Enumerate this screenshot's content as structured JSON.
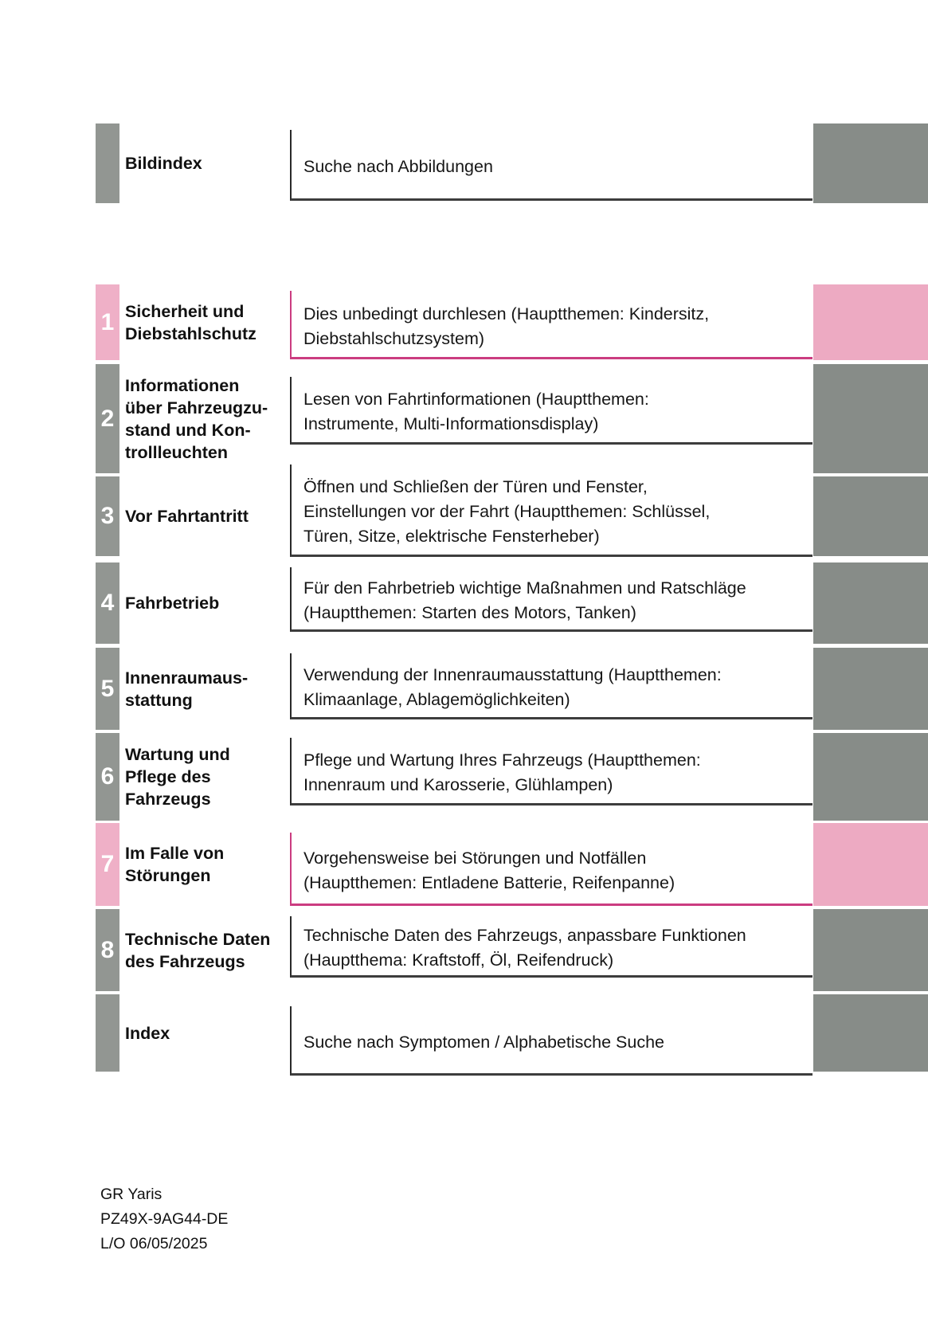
{
  "colors": {
    "gray_block": "#878c88",
    "gray_numbox": "#929692",
    "pink_block": "#edaac2",
    "pink_numbox": "#efb0c7",
    "pink_border": "#cb3c80",
    "dark_border": "#3d3d3d",
    "dark_left_border": "#2a2a2a"
  },
  "rows": [
    {
      "number": "",
      "accent": "gray",
      "label": "Bildindex",
      "description": "Suche nach Abbildungen"
    },
    {
      "number": "1",
      "accent": "pink",
      "label": "Sicherheit und\nDiebstahlschutz",
      "description": "Dies unbedingt durchlesen (Hauptthemen: Kindersitz,\nDiebstahlschutzsystem)"
    },
    {
      "number": "2",
      "accent": "gray",
      "label": "Informationen\nüber Fahrzeugzu-\nstand und Kon-\ntrollleuchten",
      "description": "Lesen von Fahrtinformationen (Hauptthemen:\nInstrumente, Multi-Informationsdisplay)"
    },
    {
      "number": "3",
      "accent": "gray",
      "label": "Vor Fahrtantritt",
      "description": "Öffnen und Schließen der Türen und Fenster,\nEinstellungen vor der Fahrt (Hauptthemen: Schlüssel,\nTüren, Sitze, elektrische Fensterheber)"
    },
    {
      "number": "4",
      "accent": "gray",
      "label": "Fahrbetrieb",
      "description": "Für den Fahrbetrieb wichtige Maßnahmen und Ratschläge\n(Hauptthemen: Starten des Motors, Tanken)"
    },
    {
      "number": "5",
      "accent": "gray",
      "label": "Innenraumaus-\nstattung",
      "description": "Verwendung der Innenraumausstattung (Hauptthemen:\nKlimaanlage, Ablagemöglichkeiten)"
    },
    {
      "number": "6",
      "accent": "gray",
      "label": "Wartung und\nPflege des\nFahrzeugs",
      "description": "Pflege und Wartung Ihres Fahrzeugs (Hauptthemen:\nInnenraum und Karosserie, Glühlampen)"
    },
    {
      "number": "7",
      "accent": "pink",
      "label": "Im Falle von\nStörungen",
      "description": "Vorgehensweise bei Störungen und Notfällen\n(Hauptthemen: Entladene Batterie, Reifenpanne)"
    },
    {
      "number": "8",
      "accent": "gray",
      "label": "Technische Daten\ndes Fahrzeugs",
      "description": "Technische Daten des Fahrzeugs, anpassbare Funktionen\n(Hauptthema: Kraftstoff, Öl, Reifendruck)"
    },
    {
      "number": "",
      "accent": "gray",
      "label": "Index",
      "description": "Suche nach Symptomen / Alphabetische Suche"
    }
  ],
  "footer": {
    "model": "GR Yaris",
    "code": "PZ49X-9AG44-DE",
    "date": "L/O 06/05/2025"
  }
}
